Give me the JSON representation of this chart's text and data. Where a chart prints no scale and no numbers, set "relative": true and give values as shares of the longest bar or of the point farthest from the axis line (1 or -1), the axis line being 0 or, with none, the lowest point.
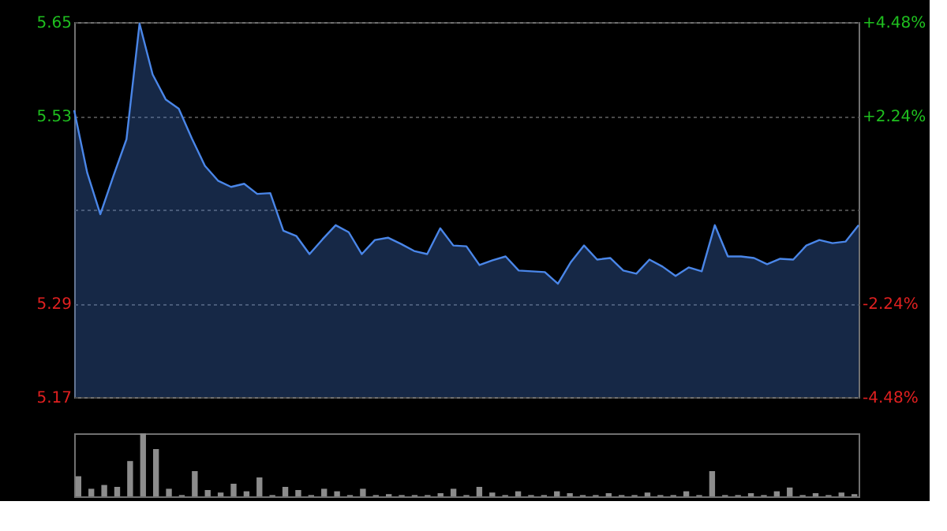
{
  "chart_data": [
    {
      "type": "area",
      "grid": "y",
      "tick_labels": "y",
      "categories": [
        null,
        null,
        null,
        null,
        null,
        null,
        null,
        null,
        null,
        null,
        null,
        null,
        null,
        null,
        null,
        null,
        null,
        null,
        null,
        null,
        null,
        null,
        null,
        null,
        null,
        null,
        null,
        null,
        null,
        null,
        null,
        null,
        null,
        null,
        null,
        null,
        null,
        null,
        null,
        null,
        null,
        null,
        null,
        null,
        null,
        null,
        null,
        null,
        null,
        null,
        null,
        null,
        null,
        null,
        null,
        null,
        null,
        null,
        null,
        null,
        null
      ],
      "series": [
        {
          "color": "#4a86e8",
          "values": [
            5.537,
            5.457,
            5.404,
            5.453,
            5.5,
            5.648,
            5.583,
            5.551,
            5.539,
            5.501,
            5.466,
            5.447,
            5.439,
            5.443,
            5.43,
            5.431,
            5.383,
            5.376,
            5.353,
            5.372,
            5.39,
            5.381,
            5.353,
            5.371,
            5.374,
            5.366,
            5.357,
            5.353,
            5.386,
            5.364,
            5.363,
            5.339,
            5.345,
            5.35,
            5.332,
            5.331,
            5.33,
            5.315,
            5.343,
            5.364,
            5.346,
            5.348,
            5.332,
            5.328,
            5.346,
            5.337,
            5.325,
            5.336,
            5.331,
            5.39,
            5.35,
            5.35,
            5.348,
            5.34,
            5.347,
            5.346,
            5.364,
            5.371,
            5.367,
            5.369,
            5.39
          ]
        }
      ],
      "ylim": [
        5.17,
        5.65
      ],
      "yticks": [
        5.65,
        5.53,
        {
          "value": 5.41,
          "label": null
        },
        5.29,
        5.17
      ],
      "y2lim": [
        -4.48,
        4.48
      ],
      "y2ticks": [
        {
          "value": 4.48,
          "label": "+4.48%"
        },
        {
          "value": 2.24,
          "label": "+2.24%"
        },
        {
          "value": -2.24,
          "label": "-2.24%"
        },
        {
          "value": -4.48,
          "label": "-4.48%"
        }
      ]
    },
    {
      "type": "bar",
      "relative": true,
      "tick_labels": false,
      "categories": [
        null,
        null,
        null,
        null,
        null,
        null,
        null,
        null,
        null,
        null,
        null,
        null,
        null,
        null,
        null,
        null,
        null,
        null,
        null,
        null,
        null,
        null,
        null,
        null,
        null,
        null,
        null,
        null,
        null,
        null,
        null,
        null,
        null,
        null,
        null,
        null,
        null,
        null,
        null,
        null,
        null,
        null,
        null,
        null,
        null,
        null,
        null,
        null,
        null,
        null,
        null,
        null,
        null,
        null,
        null,
        null,
        null,
        null,
        null,
        null,
        null
      ],
      "series": [
        {
          "color": "#8c8c8c",
          "values": [
            0.32,
            0.12,
            0.18,
            0.15,
            0.56,
            1.0,
            0.75,
            0.12,
            0.02,
            0.4,
            0.1,
            0.06,
            0.2,
            0.08,
            0.3,
            0.02,
            0.15,
            0.1,
            0.02,
            0.12,
            0.08,
            0.02,
            0.12,
            0.02,
            0.035,
            0.02,
            0.02,
            0.02,
            0.05,
            0.12,
            0.02,
            0.15,
            0.06,
            0.02,
            0.08,
            0.02,
            0.02,
            0.08,
            0.05,
            0.02,
            0.02,
            0.05,
            0.02,
            0.02,
            0.06,
            0.02,
            0.02,
            0.08,
            0.02,
            0.4,
            0.02,
            0.02,
            0.05,
            0.02,
            0.08,
            0.14,
            0.02,
            0.05,
            0.02,
            0.06,
            0.035
          ]
        }
      ]
    }
  ]
}
